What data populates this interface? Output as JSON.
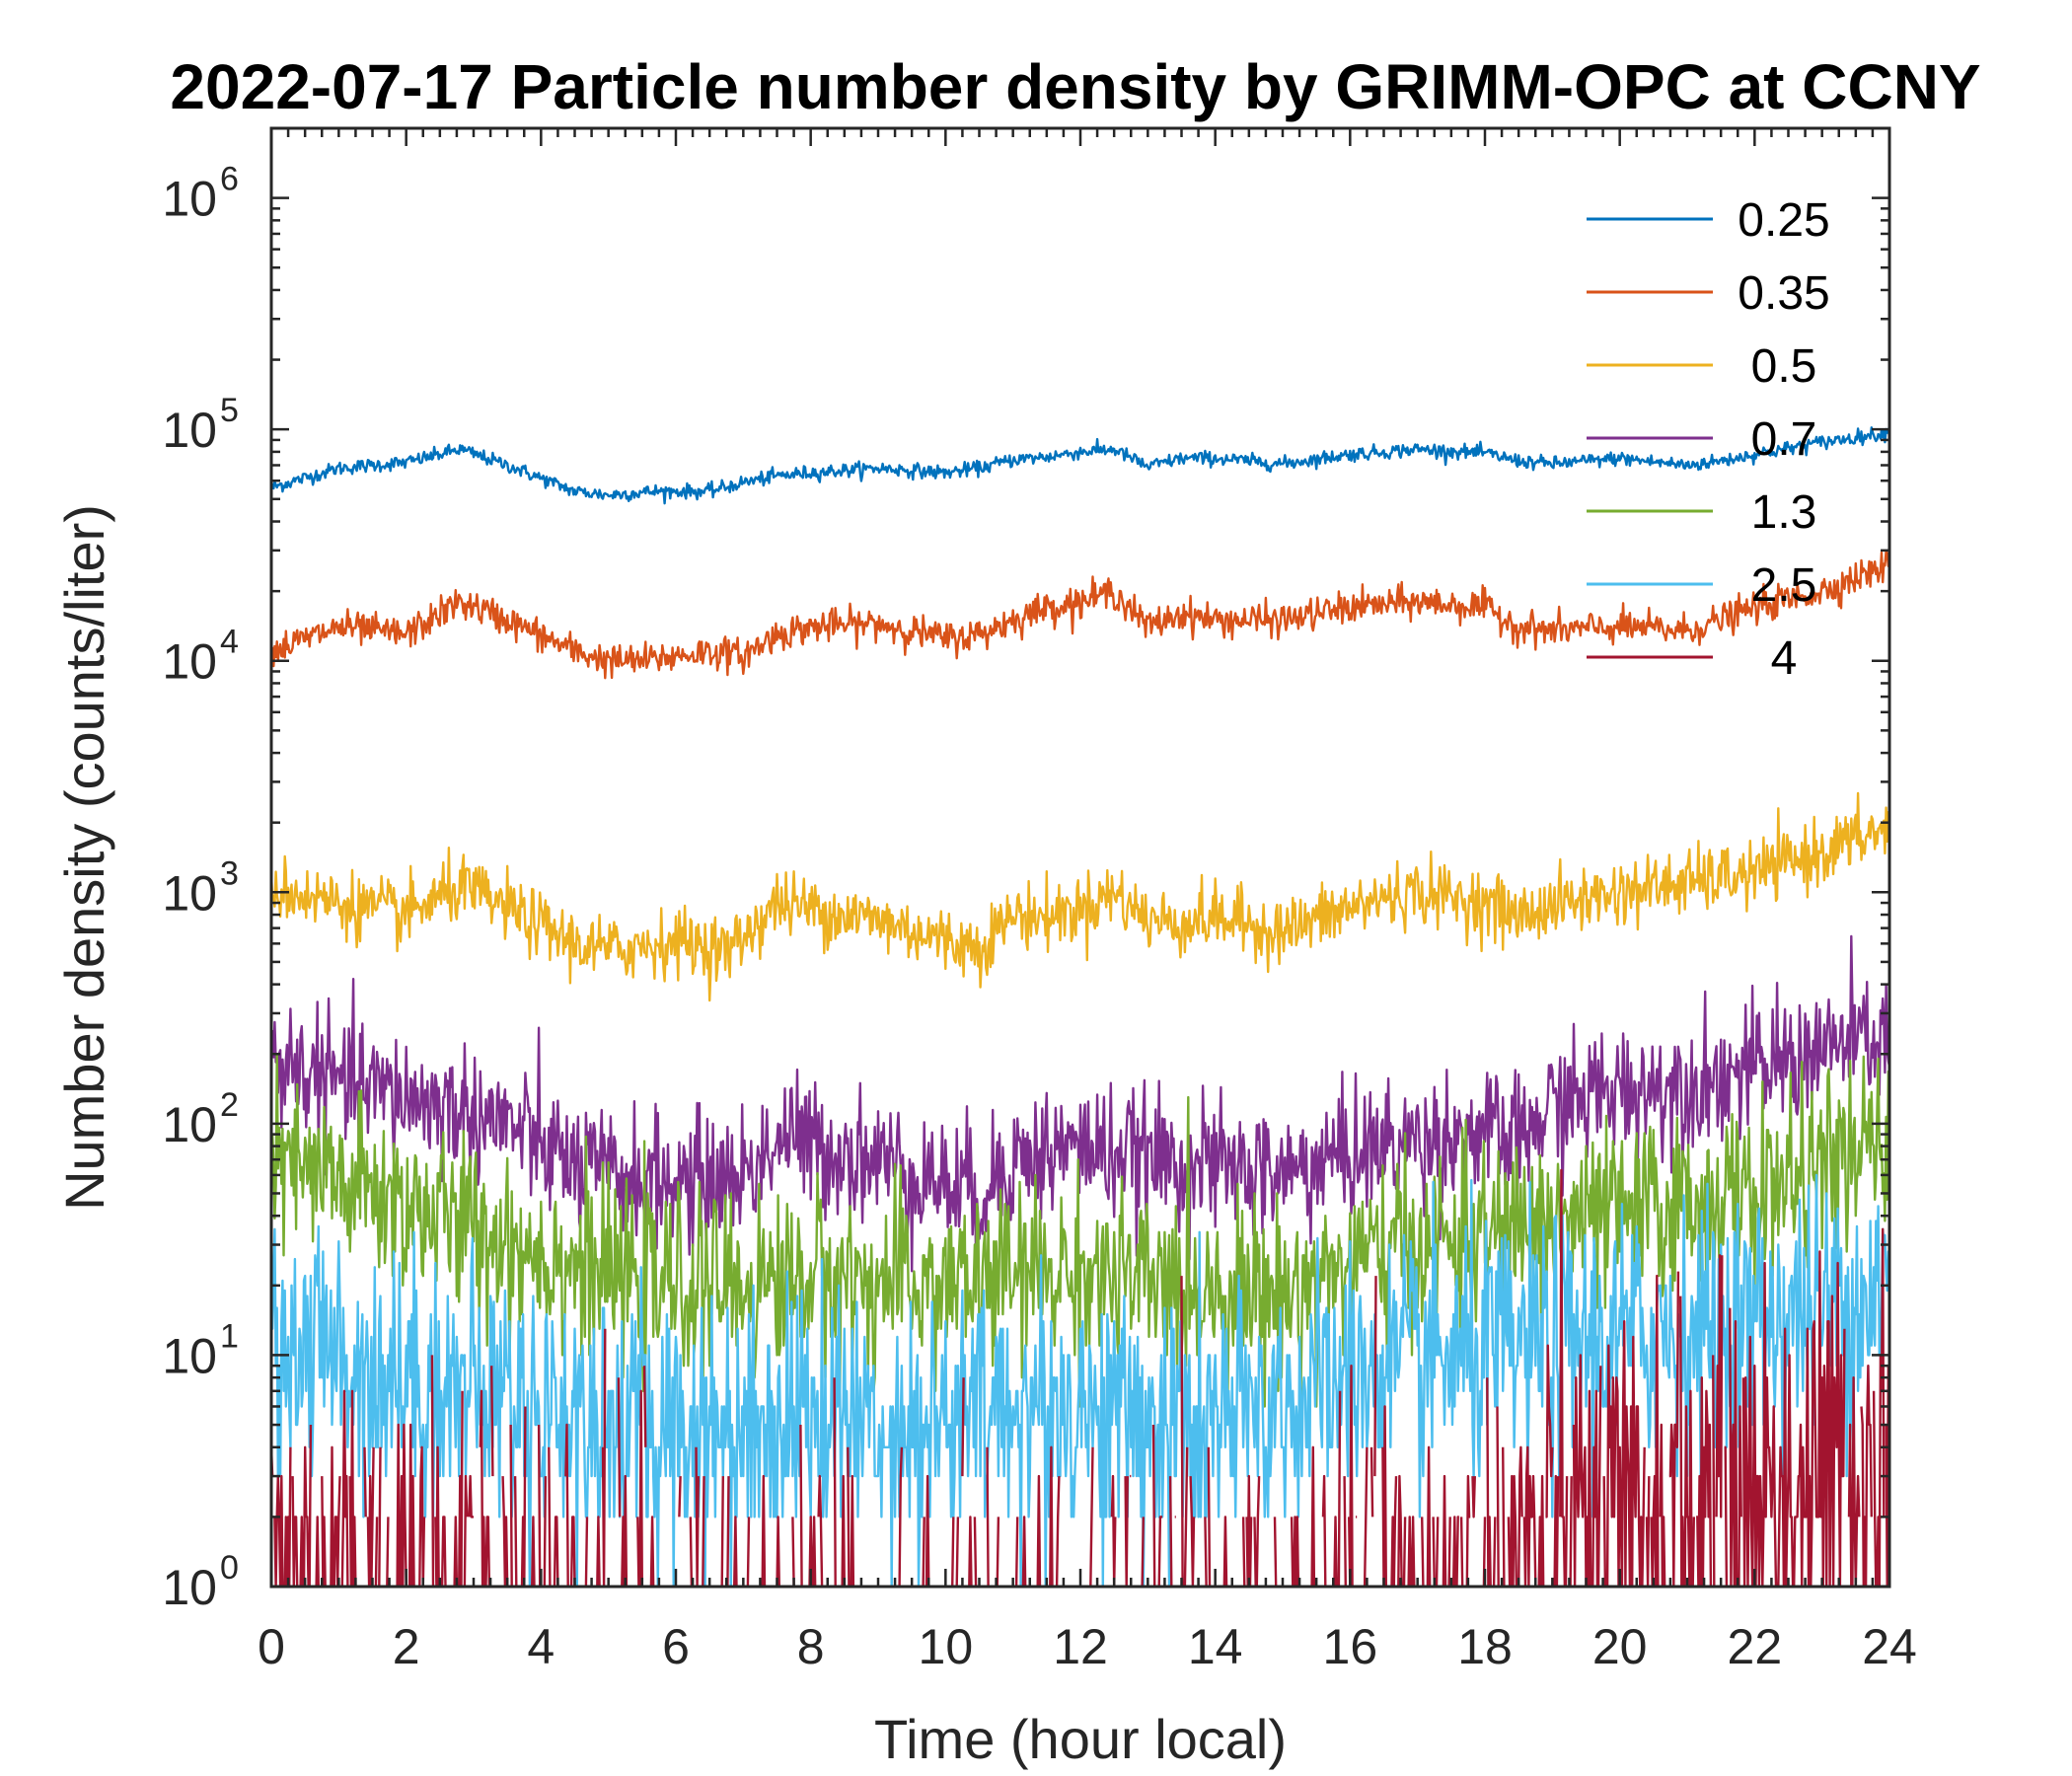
{
  "chart_data": {
    "type": "line",
    "title": "2022-07-17 Particle number density by GRIMM-OPC at CCNY",
    "xlabel": "Time (hour local)",
    "ylabel": "Number density (counts/liter)",
    "yscale": "log",
    "xlim": [
      0,
      24
    ],
    "ylim": [
      1,
      2000000
    ],
    "xticks": [
      0,
      2,
      4,
      6,
      8,
      10,
      12,
      14,
      16,
      18,
      20,
      22,
      24
    ],
    "yticks": [
      {
        "value": 1,
        "base": "10",
        "exp": "0"
      },
      {
        "value": 10,
        "base": "10",
        "exp": "1"
      },
      {
        "value": 100,
        "base": "10",
        "exp": "2"
      },
      {
        "value": 1000,
        "base": "10",
        "exp": "3"
      },
      {
        "value": 10000,
        "base": "10",
        "exp": "4"
      },
      {
        "value": 100000,
        "base": "10",
        "exp": "5"
      },
      {
        "value": 1000000,
        "base": "10",
        "exp": "6"
      }
    ],
    "legend_position": "top-right",
    "grid": false,
    "series": [
      {
        "name": "0.25",
        "color": "#0072BD",
        "noise": 0.03,
        "x": [
          0,
          1,
          2,
          2.8,
          3.5,
          4.5,
          5,
          5.7,
          6.5,
          7,
          7.5,
          8,
          9,
          10,
          10.5,
          11,
          11.5,
          12,
          12.5,
          13,
          13.5,
          14,
          15,
          16,
          17,
          18,
          18.5,
          19,
          20,
          21,
          21.5,
          22,
          23,
          24
        ],
        "y": [
          56000,
          68000,
          72000,
          82000,
          70000,
          54000,
          52000,
          54000,
          54000,
          59000,
          63000,
          65000,
          68000,
          65000,
          68000,
          74000,
          76000,
          80000,
          82000,
          69000,
          75000,
          75000,
          71000,
          78000,
          82000,
          79000,
          73000,
          71000,
          75000,
          70000,
          73000,
          78000,
          88000,
          97000
        ]
      },
      {
        "name": "0.35",
        "color": "#D95319",
        "noise": 0.07,
        "x": [
          0,
          1,
          2,
          2.8,
          3.5,
          4.5,
          5,
          5.5,
          6.5,
          7,
          7.5,
          8,
          9,
          10,
          10.5,
          11,
          11.5,
          12,
          12.5,
          13,
          13.5,
          14,
          15,
          16,
          17,
          18,
          18.5,
          19,
          20,
          21,
          21.5,
          22,
          23,
          24
        ],
        "y": [
          11000,
          14000,
          13000,
          18000,
          15000,
          11000,
          10000,
          10000,
          11000,
          10500,
          13000,
          14000,
          14500,
          12500,
          13000,
          15000,
          17000,
          18000,
          20000,
          14000,
          16000,
          15000,
          15000,
          17000,
          18000,
          17000,
          14000,
          13500,
          14000,
          13500,
          15000,
          17000,
          20000,
          26000
        ]
      },
      {
        "name": "0.5",
        "color": "#EDB120",
        "noise": 0.14,
        "x": [
          0,
          1,
          2,
          2.8,
          3.5,
          4.5,
          5,
          6,
          6.8,
          7.5,
          8,
          9,
          10,
          10.5,
          11,
          11.5,
          12,
          12.5,
          13,
          13.5,
          14,
          15,
          16,
          16.5,
          17,
          18,
          18.5,
          19,
          20,
          21,
          22,
          23,
          24
        ],
        "y": [
          1050,
          900,
          800,
          1050,
          850,
          600,
          560,
          620,
          560,
          900,
          850,
          760,
          620,
          580,
          800,
          780,
          850,
          1000,
          760,
          740,
          780,
          680,
          850,
          950,
          1000,
          900,
          780,
          880,
          1000,
          1100,
          1200,
          1500,
          1900
        ]
      },
      {
        "name": "0.7",
        "color": "#7E2F8E",
        "noise": 0.28,
        "x": [
          0,
          1,
          2,
          3,
          3.5,
          4.5,
          5,
          6,
          7,
          7.6,
          8,
          9,
          10,
          10.5,
          11,
          12,
          13,
          14,
          15,
          16,
          17,
          18,
          18.5,
          19,
          20,
          21,
          22,
          23,
          24
        ],
        "y": [
          190,
          150,
          130,
          110,
          100,
          65,
          60,
          55,
          60,
          90,
          80,
          70,
          55,
          50,
          70,
          80,
          70,
          65,
          60,
          75,
          85,
          90,
          80,
          120,
          140,
          150,
          170,
          210,
          240
        ]
      },
      {
        "name": "1.3",
        "color": "#77AC30",
        "noise": 0.38,
        "x": [
          0,
          1,
          2,
          3,
          4,
          5,
          6,
          7,
          8,
          9,
          10,
          11,
          12,
          13,
          14,
          15,
          16,
          17,
          18,
          19,
          20,
          21,
          22,
          23,
          24
        ],
        "y": [
          65,
          55,
          45,
          35,
          28,
          22,
          20,
          20,
          22,
          20,
          20,
          22,
          23,
          20,
          20,
          18,
          25,
          30,
          32,
          38,
          40,
          45,
          50,
          65,
          80
        ]
      },
      {
        "name": "2.5",
        "color": "#4DBEEE",
        "noise": 0.55,
        "x": [
          0,
          1,
          2,
          3,
          4,
          5,
          6,
          7,
          8,
          9,
          10,
          11,
          12,
          13,
          14,
          15,
          16,
          17,
          18,
          19,
          20,
          21,
          22,
          23,
          24
        ],
        "y": [
          12,
          10,
          8,
          7,
          6,
          5,
          5,
          5,
          6,
          5,
          5,
          6,
          6,
          5,
          5,
          6,
          8,
          9,
          10,
          11,
          12,
          13,
          14,
          16,
          20
        ]
      },
      {
        "name": "4",
        "color": "#A2142F",
        "noise": 0.9,
        "x": [
          0,
          3,
          6,
          9,
          12,
          15,
          18,
          19,
          20,
          21,
          22,
          23,
          24
        ],
        "y": [
          1.2,
          1.1,
          0.6,
          0.5,
          0.5,
          0.6,
          0.9,
          1.5,
          1.8,
          2.0,
          2.5,
          3.0,
          3.5
        ]
      }
    ]
  }
}
